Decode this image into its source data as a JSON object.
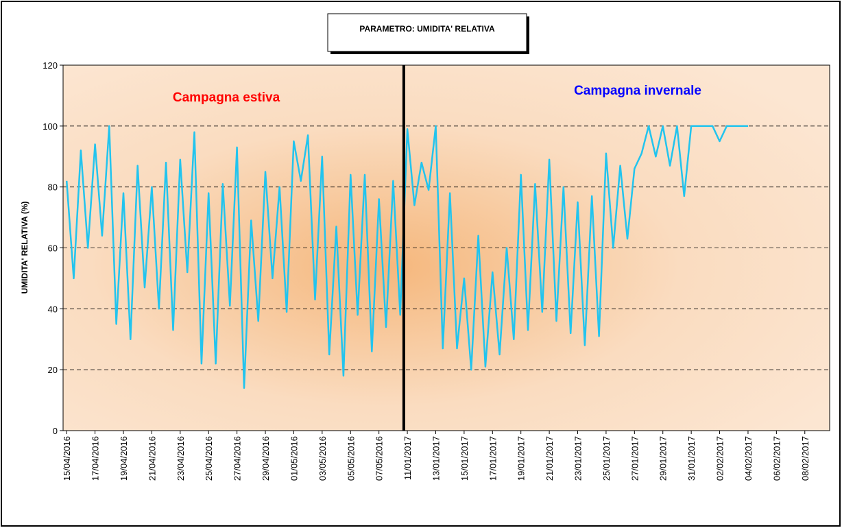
{
  "chart_data": {
    "type": "line",
    "title": "PARAMETRO: UMIDITA' RELATIVA",
    "ylabel": "UMIDITA' RELATIVA (%)",
    "annotations": [
      {
        "text": "Campagna estiva",
        "color": "#ff0000"
      },
      {
        "text": "Campagna invernale",
        "color": "#0000ff"
      }
    ],
    "categories": [
      "15/04/2016",
      null,
      null,
      null,
      "17/04/2016",
      null,
      null,
      null,
      "19/04/2016",
      null,
      null,
      null,
      "21/04/2016",
      null,
      null,
      null,
      "23/04/2016",
      null,
      null,
      null,
      "25/04/2016",
      null,
      null,
      null,
      "27/04/2016",
      null,
      null,
      null,
      "29/04/2016",
      null,
      null,
      null,
      "01/05/2016",
      null,
      null,
      null,
      "03/05/2016",
      null,
      null,
      null,
      "05/05/2016",
      null,
      null,
      null,
      "07/05/2016",
      null,
      null,
      null,
      "11/01/2017",
      null,
      null,
      null,
      "13/01/2017",
      null,
      null,
      null,
      "15/01/2017",
      null,
      null,
      null,
      "17/01/2017",
      null,
      null,
      null,
      "19/01/2017",
      null,
      null,
      null,
      "21/01/2017",
      null,
      null,
      null,
      "23/01/2017",
      null,
      null,
      null,
      "25/01/2017",
      null,
      null,
      null,
      "27/01/2017",
      null,
      null,
      null,
      "29/01/2017",
      null,
      null,
      null,
      "31/01/2017",
      null,
      null,
      null,
      "02/02/2017",
      null,
      null,
      null,
      "04/02/2017",
      null,
      null,
      null,
      "06/02/2017",
      null,
      null,
      null,
      "08/02/2017",
      null,
      null,
      null
    ],
    "series": [
      {
        "color": "#22c4ee",
        "values": [
          82,
          50,
          92,
          60,
          94,
          64,
          100,
          35,
          78,
          30,
          87,
          47,
          80,
          40,
          88,
          33,
          89,
          52,
          98,
          22,
          78,
          22,
          81,
          41,
          93,
          14,
          69,
          36,
          85,
          50,
          80,
          39,
          95,
          82,
          97,
          43,
          90,
          25,
          67,
          18,
          84,
          38,
          84,
          26,
          76,
          34,
          82,
          38,
          99,
          74,
          88,
          79,
          100,
          27,
          78,
          27,
          50,
          20,
          64,
          21,
          52,
          25,
          60,
          30,
          84,
          33,
          81,
          39,
          89,
          36,
          80,
          32,
          75,
          28,
          77,
          31,
          91,
          60,
          87,
          63,
          86,
          91,
          100,
          90,
          100,
          87,
          100,
          77,
          100,
          100,
          100,
          100,
          95,
          100,
          100,
          100,
          100,
          null,
          null,
          null,
          null,
          null,
          null,
          null,
          null,
          null,
          null,
          null
        ]
      }
    ],
    "ylim": [
      0,
      120
    ],
    "yticks": [
      0,
      20,
      40,
      60,
      80,
      100,
      120
    ],
    "grid": true
  }
}
